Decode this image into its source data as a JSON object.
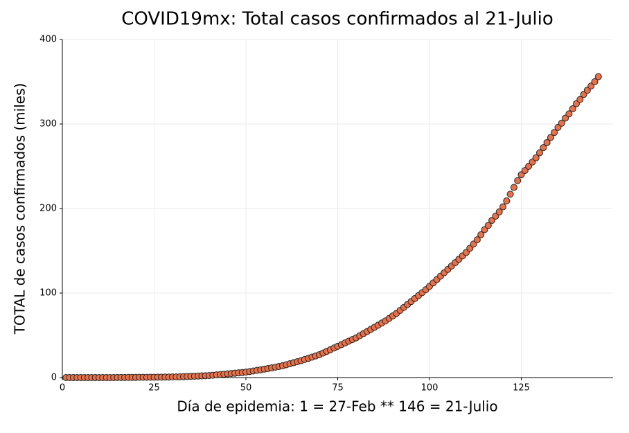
{
  "chart_data": {
    "type": "scatter",
    "title": "COVID19mx: Total casos confirmados al 21-Julio",
    "x_label": "Día de epidemia: 1 = 27-Feb ** 146 = 21-Julio",
    "y_label": "TOTAL de casos confirmados (miles)",
    "color": "#e8714a",
    "grid": true,
    "xlim": [
      0,
      150
    ],
    "ylim": [
      0,
      400
    ],
    "xticks": [
      0,
      25,
      50,
      75,
      100,
      125
    ],
    "yticks": [
      0,
      100,
      200,
      300,
      400
    ],
    "x": [
      1,
      2,
      3,
      4,
      5,
      6,
      7,
      8,
      9,
      10,
      11,
      12,
      13,
      14,
      15,
      16,
      17,
      18,
      19,
      20,
      21,
      22,
      23,
      24,
      25,
      26,
      27,
      28,
      29,
      30,
      31,
      32,
      33,
      34,
      35,
      36,
      37,
      38,
      39,
      40,
      41,
      42,
      43,
      44,
      45,
      46,
      47,
      48,
      49,
      50,
      51,
      52,
      53,
      54,
      55,
      56,
      57,
      58,
      59,
      60,
      61,
      62,
      63,
      64,
      65,
      66,
      67,
      68,
      69,
      70,
      71,
      72,
      73,
      74,
      75,
      76,
      77,
      78,
      79,
      80,
      81,
      82,
      83,
      84,
      85,
      86,
      87,
      88,
      89,
      90,
      91,
      92,
      93,
      94,
      95,
      96,
      97,
      98,
      99,
      100,
      101,
      102,
      103,
      104,
      105,
      106,
      107,
      108,
      109,
      110,
      111,
      112,
      113,
      114,
      115,
      116,
      117,
      118,
      119,
      120,
      121,
      122,
      123,
      124,
      125,
      126,
      127,
      128,
      129,
      130,
      131,
      132,
      133,
      134,
      135,
      136,
      137,
      138,
      139,
      140,
      141,
      142,
      143,
      144,
      145,
      146
    ],
    "values": [
      0,
      0,
      0,
      0,
      0,
      0,
      0,
      0,
      0,
      0,
      0,
      0,
      0,
      0,
      0.1,
      0.1,
      0.1,
      0.2,
      0.2,
      0.2,
      0.3,
      0.3,
      0.3,
      0.4,
      0.4,
      0.5,
      0.5,
      0.6,
      0.6,
      0.7,
      0.8,
      0.9,
      1.1,
      1.3,
      1.5,
      1.6,
      1.8,
      2.0,
      2.2,
      2.4,
      2.8,
      3.2,
      3.6,
      4.0,
      4.4,
      4.8,
      5.2,
      5.6,
      6.0,
      6.5,
      7.1,
      7.8,
      8.5,
      9.2,
      10,
      10.7,
      11.5,
      12.3,
      13.1,
      14,
      15.2,
      16.4,
      17.6,
      18.8,
      20,
      21.4,
      22.8,
      24.2,
      25.6,
      27,
      29,
      31,
      33,
      35,
      37,
      39,
      41,
      43,
      45,
      47,
      49.5,
      52,
      54.5,
      57,
      59.5,
      62,
      64.5,
      67,
      70,
      73,
      76,
      79.5,
      83,
      86.5,
      90,
      93.5,
      97,
      100.5,
      104,
      108,
      112,
      116,
      120,
      124,
      128,
      132,
      136,
      140,
      144,
      148,
      153,
      158,
      163,
      169,
      175,
      180,
      186,
      191,
      196,
      202,
      209,
      217,
      225,
      233,
      240,
      245,
      250,
      255,
      260,
      266,
      272,
      278,
      284,
      290,
      296,
      301,
      307,
      312,
      318,
      324,
      329,
      335,
      340,
      345,
      350,
      356
    ]
  }
}
